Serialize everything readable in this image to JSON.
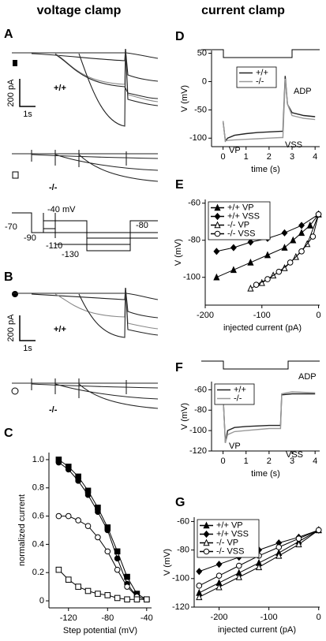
{
  "headers": [
    "voltage clamp",
    "current clamp"
  ],
  "panel_a": {
    "label": "A",
    "scale_current": "200 pA",
    "scale_time": "1s",
    "wt": "+/+",
    "ko": "-/-"
  },
  "protocol": {
    "step": "-40 mV",
    "levels": [
      "-70",
      "-90",
      "-110",
      "-130",
      "-80"
    ]
  },
  "panel_b": {
    "label": "B",
    "scale_current": "200 pA",
    "scale_time": "1s",
    "wt": "+/+",
    "ko": "-/-"
  },
  "chart_data": [
    {
      "type": "line",
      "panel": "C",
      "xlabel": "Step potential (mV)",
      "ylabel": "normalized current",
      "x": [
        -130,
        -120,
        -110,
        -100,
        -90,
        -80,
        -70,
        -60,
        -50,
        -40
      ],
      "xlim": [
        -140,
        -35
      ],
      "xticks": [
        -120,
        -80,
        -40
      ],
      "ylim": [
        -0.05,
        1.05
      ],
      "yticks": [
        0,
        0.2,
        0.4,
        0.6,
        0.8,
        {
          "value": 1,
          "label": "1.0"
        }
      ],
      "series": [
        {
          "color": "#000000",
          "marker": "square",
          "filled": true,
          "values": [
            1.0,
            0.95,
            0.88,
            0.78,
            0.66,
            0.52,
            0.35,
            0.17,
            0.05,
            0.01
          ]
        },
        {
          "color": "#000000",
          "marker": "circle",
          "filled": true,
          "values": [
            0.98,
            0.93,
            0.85,
            0.75,
            0.63,
            0.5,
            0.3,
            0.12,
            0.03,
            0.01
          ]
        },
        {
          "color": "#000000",
          "marker": "circle",
          "filled": false,
          "values": [
            0.6,
            0.6,
            0.57,
            0.53,
            0.45,
            0.35,
            0.22,
            0.1,
            0.03,
            0.01
          ]
        },
        {
          "color": "#000000",
          "marker": "square",
          "filled": false,
          "values": [
            0.22,
            0.15,
            0.1,
            0.07,
            0.05,
            0.04,
            0.02,
            0.01,
            0.01,
            0.01
          ]
        }
      ]
    },
    {
      "type": "line",
      "panel": "D",
      "xlabel": "time (s)",
      "ylabel": "V (mV)",
      "legend": "center",
      "x": [
        0,
        0.1,
        0.2,
        0.5,
        1,
        1.5,
        2,
        2.5,
        2.6,
        2.7,
        2.8,
        3,
        3.5,
        4
      ],
      "xlim": [
        -0.5,
        4.2
      ],
      "xticks": [
        0,
        1,
        2,
        3,
        4
      ],
      "ylim": [
        -115,
        55
      ],
      "yticks": [
        -100,
        -50,
        0,
        50
      ],
      "annotations": [
        "ADP",
        "VP",
        "VSS"
      ],
      "series": [
        {
          "name": "+/+",
          "color": "#222222",
          "values": [
            -70,
            -105,
            -100,
            -95,
            -92,
            -90,
            -89,
            -88,
            -88,
            10,
            -40,
            -55,
            -60,
            -62
          ]
        },
        {
          "name": "-/-",
          "color": "#999999",
          "values": [
            -70,
            -105,
            -104,
            -103,
            -102,
            -101,
            -100,
            -99,
            -99,
            5,
            -40,
            -60,
            -65,
            -67
          ]
        }
      ]
    },
    {
      "type": "line",
      "panel": "E",
      "xlabel": "injected current (pA)",
      "ylabel": "V (mV)",
      "legend": "upper left",
      "xlim": [
        -200,
        2
      ],
      "xticks": [
        -200,
        -100,
        0
      ],
      "ylim": [
        -115,
        -58
      ],
      "yticks": [
        -60,
        -80,
        -100
      ],
      "series": [
        {
          "name": "+/+ VP",
          "color": "#000000",
          "marker": "triangle",
          "filled": true,
          "x": [
            -180,
            -150,
            -120,
            -90,
            -60,
            -45,
            -30,
            -15,
            0
          ],
          "values": [
            -100,
            -96,
            -92,
            -88,
            -84,
            -80,
            -76,
            -72,
            -66
          ]
        },
        {
          "name": "+/+ VSS",
          "color": "#000000",
          "marker": "diamond",
          "filled": true,
          "x": [
            -180,
            -150,
            -120,
            -90,
            -60,
            -30,
            0
          ],
          "values": [
            -86,
            -84,
            -81,
            -79,
            -76,
            -72,
            -66
          ]
        },
        {
          "name": "-/- VP",
          "color": "#000000",
          "marker": "triangle",
          "filled": false,
          "x": [
            -120,
            -100,
            -80,
            -60,
            -40,
            -20,
            0
          ],
          "values": [
            -106,
            -103,
            -99,
            -95,
            -89,
            -82,
            -66
          ]
        },
        {
          "name": "-/- VSS",
          "color": "#000000",
          "marker": "circle",
          "filled": false,
          "x": [
            -110,
            -90,
            -70,
            -50,
            -30,
            -10,
            0
          ],
          "values": [
            -104,
            -101,
            -97,
            -92,
            -86,
            -78,
            -66
          ]
        }
      ]
    },
    {
      "type": "line",
      "panel": "F",
      "xlabel": "time (s)",
      "ylabel": "V (mV)",
      "legend": "upper left",
      "x": [
        0,
        0.1,
        0.2,
        0.5,
        1,
        2,
        2.5,
        2.55,
        3,
        4
      ],
      "xlim": [
        -0.5,
        4.2
      ],
      "xticks": [
        0,
        1,
        2,
        3,
        4
      ],
      "ylim": [
        -120,
        -52
      ],
      "yticks": [
        -60,
        -80,
        -100,
        -120
      ],
      "annotations": [
        "ADP",
        "VP",
        "VSS"
      ],
      "series": [
        {
          "name": "+/+",
          "color": "#222222",
          "values": [
            -65,
            -112,
            -100,
            -97,
            -96,
            -95,
            -95,
            -65,
            -64,
            -64
          ]
        },
        {
          "name": "-/-",
          "color": "#999999",
          "values": [
            -65,
            -112,
            -104,
            -101,
            -100,
            -98,
            -98,
            -64,
            -62,
            -63
          ]
        }
      ]
    },
    {
      "type": "line",
      "panel": "G",
      "xlabel": "injected current (pA)",
      "ylabel": "V (mV)",
      "legend": "upper left",
      "xlim": [
        -250,
        2
      ],
      "xticks": [
        -200,
        -100,
        0
      ],
      "ylim": [
        -120,
        -57
      ],
      "yticks": [
        -60,
        -80,
        -100,
        -120
      ],
      "series": [
        {
          "name": "+/+ VP",
          "color": "#000000",
          "marker": "triangle",
          "filled": true,
          "x": [
            -240,
            -200,
            -160,
            -120,
            -80,
            -40,
            0
          ],
          "values": [
            -110,
            -103,
            -96,
            -89,
            -82,
            -74,
            -66
          ]
        },
        {
          "name": "+/+ VSS",
          "color": "#000000",
          "marker": "diamond",
          "filled": true,
          "x": [
            -240,
            -200,
            -160,
            -120,
            -80,
            -40,
            0
          ],
          "values": [
            -95,
            -90,
            -85,
            -80,
            -75,
            -71,
            -66
          ]
        },
        {
          "name": "-/- VP",
          "color": "#000000",
          "marker": "triangle",
          "filled": false,
          "x": [
            -240,
            -200,
            -160,
            -120,
            -80,
            -40,
            0
          ],
          "values": [
            -113,
            -106,
            -99,
            -92,
            -84,
            -76,
            -66
          ]
        },
        {
          "name": "-/- VSS",
          "color": "#000000",
          "marker": "circle",
          "filled": false,
          "x": [
            -240,
            -200,
            -160,
            -120,
            -80,
            -40,
            0
          ],
          "values": [
            -105,
            -98,
            -91,
            -84,
            -78,
            -72,
            -66
          ]
        }
      ]
    }
  ]
}
